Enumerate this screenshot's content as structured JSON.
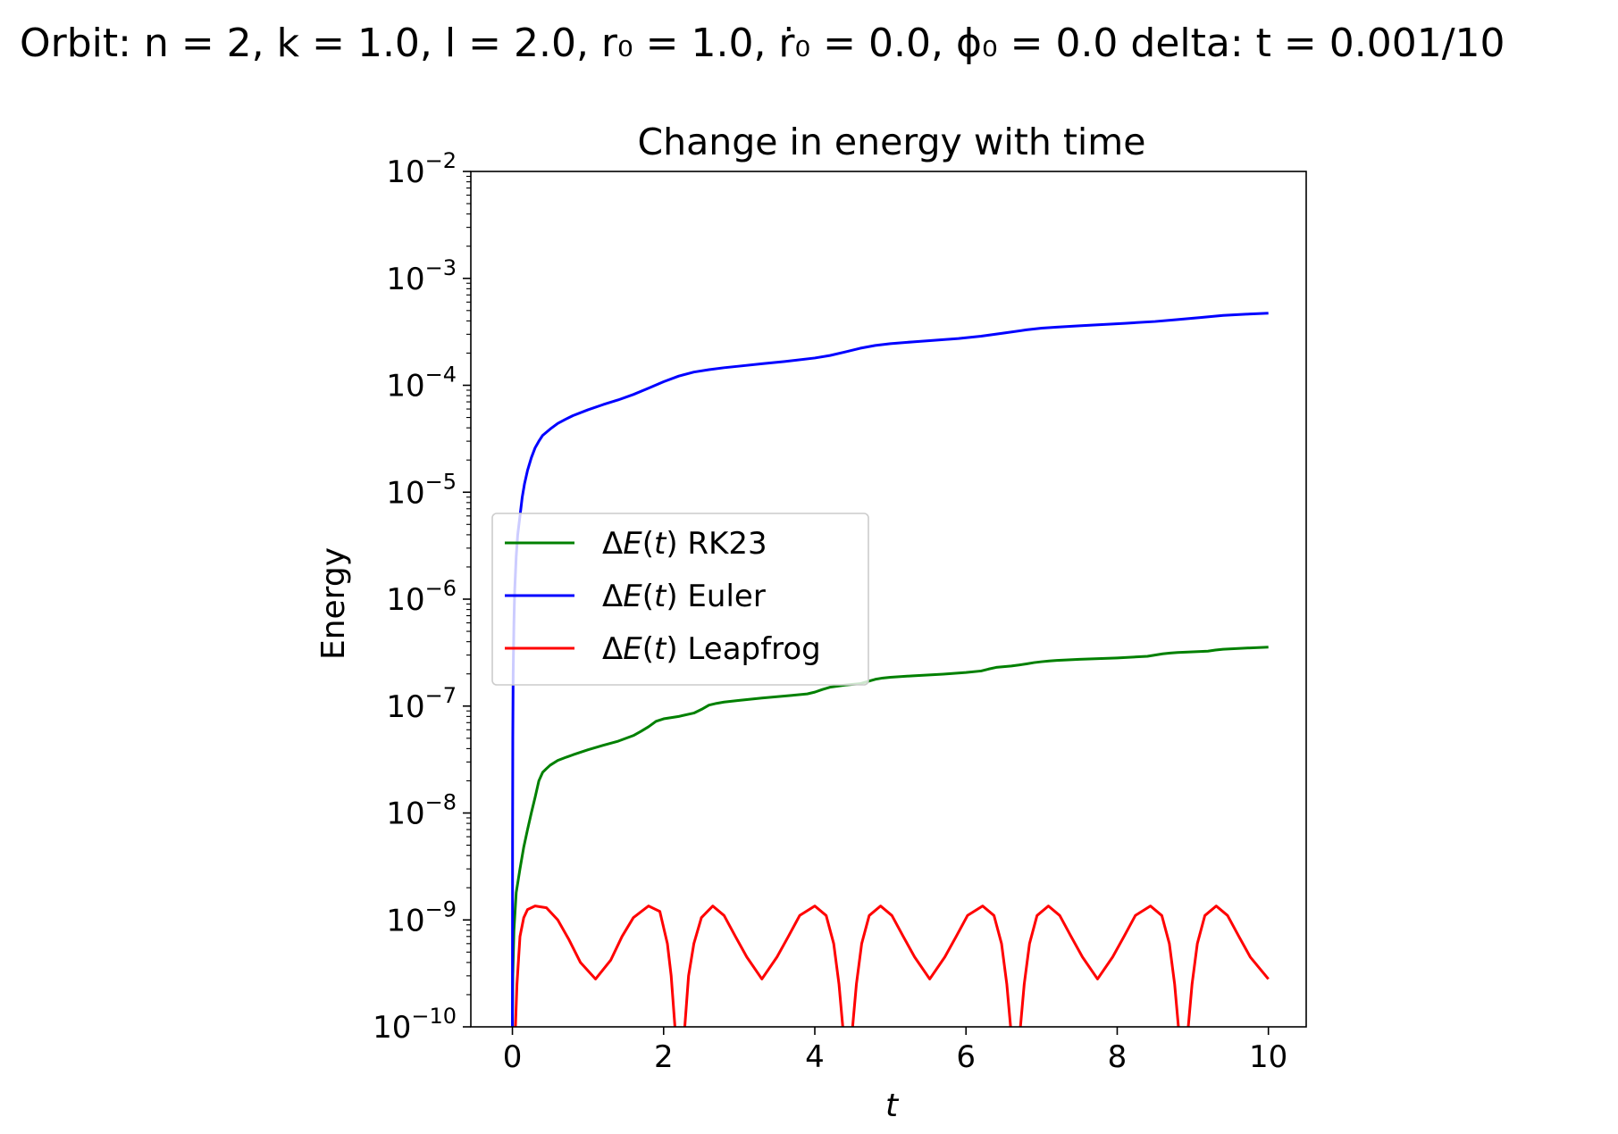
{
  "figure": {
    "suptitle": "Orbit:   n = 2,  k = 1.0,  l = 2.0,  r₀ = 1.0,  ṙ₀ = 0.0,  ϕ₀ = 0.0 delta: t = 0.001/10"
  },
  "chart_data": {
    "type": "line",
    "title": "Change in energy with time",
    "xlabel": "t",
    "ylabel": "Energy",
    "xlim": [
      -0.55,
      10.5
    ],
    "ylim": [
      1e-10,
      0.01
    ],
    "xscale": "linear",
    "yscale": "log",
    "xticks": [
      0,
      2,
      4,
      6,
      8,
      10
    ],
    "xtick_labels": [
      "0",
      "2",
      "4",
      "6",
      "8",
      "10"
    ],
    "yticks": [
      1e-10,
      1e-09,
      1e-08,
      1e-07,
      1e-06,
      1e-05,
      0.0001,
      0.001,
      0.01
    ],
    "ytick_labels": [
      {
        "base": "10",
        "exp": "−10"
      },
      {
        "base": "10",
        "exp": "−9"
      },
      {
        "base": "10",
        "exp": "−8"
      },
      {
        "base": "10",
        "exp": "−7"
      },
      {
        "base": "10",
        "exp": "−6"
      },
      {
        "base": "10",
        "exp": "−5"
      },
      {
        "base": "10",
        "exp": "−4"
      },
      {
        "base": "10",
        "exp": "−3"
      },
      {
        "base": "10",
        "exp": "−2"
      }
    ],
    "grid": false,
    "legend_position": "center-left",
    "series": [
      {
        "name": "ΔE(t) RK23",
        "label_prefix": "Δ",
        "label_italic": "E",
        "label_paren": "(t)",
        "label_method": "RK23",
        "color": "#008000",
        "x": [
          0.0,
          0.005,
          0.02,
          0.05,
          0.1,
          0.15,
          0.2,
          0.25,
          0.3,
          0.35,
          0.4,
          0.45,
          0.5,
          0.6,
          0.7,
          0.8,
          1.0,
          1.2,
          1.4,
          1.6,
          1.7,
          1.8,
          1.9,
          2.0,
          2.2,
          2.4,
          2.5,
          2.6,
          2.7,
          2.8,
          3.0,
          3.3,
          3.7,
          3.9,
          4.0,
          4.1,
          4.2,
          4.4,
          4.6,
          4.7,
          4.8,
          4.9,
          5.0,
          5.3,
          5.7,
          6.0,
          6.2,
          6.3,
          6.4,
          6.6,
          6.7,
          6.8,
          6.9,
          7.0,
          7.1,
          7.2,
          7.5,
          8.0,
          8.4,
          8.5,
          8.6,
          8.7,
          8.8,
          9.2,
          9.3,
          9.4,
          9.6,
          10.0
        ],
        "y": [
          1e-10,
          3e-10,
          8e-10,
          1.8e-09,
          3e-09,
          4.8e-09,
          7e-09,
          1e-08,
          1.4e-08,
          2e-08,
          2.4e-08,
          2.6e-08,
          2.8e-08,
          3.1e-08,
          3.3e-08,
          3.5e-08,
          3.9e-08,
          4.3e-08,
          4.7e-08,
          5.3e-08,
          5.8e-08,
          6.4e-08,
          7.2e-08,
          7.6e-08,
          8e-08,
          8.6e-08,
          9.3e-08,
          1.02e-07,
          1.06e-07,
          1.09e-07,
          1.13e-07,
          1.19e-07,
          1.26e-07,
          1.3e-07,
          1.35e-07,
          1.43e-07,
          1.5e-07,
          1.57e-07,
          1.62e-07,
          1.7e-07,
          1.78e-07,
          1.83e-07,
          1.86e-07,
          1.92e-07,
          1.99e-07,
          2.06e-07,
          2.13e-07,
          2.22e-07,
          2.3e-07,
          2.37e-07,
          2.42e-07,
          2.48e-07,
          2.55e-07,
          2.6e-07,
          2.64e-07,
          2.67e-07,
          2.74e-07,
          2.82e-07,
          2.92e-07,
          3e-07,
          3.08e-07,
          3.13e-07,
          3.17e-07,
          3.26e-07,
          3.34e-07,
          3.4e-07,
          3.46e-07,
          3.56e-07
        ]
      },
      {
        "name": "ΔE(t) Euler",
        "label_prefix": "Δ",
        "label_italic": "E",
        "label_paren": "(t)",
        "label_method": "Euler",
        "color": "#0000ff",
        "x": [
          0.0,
          0.002,
          0.005,
          0.01,
          0.02,
          0.03,
          0.05,
          0.07,
          0.1,
          0.13,
          0.16,
          0.2,
          0.25,
          0.3,
          0.35,
          0.4,
          0.5,
          0.6,
          0.7,
          0.8,
          1.0,
          1.2,
          1.4,
          1.6,
          1.8,
          2.0,
          2.2,
          2.4,
          2.6,
          2.8,
          3.0,
          3.3,
          3.6,
          4.0,
          4.2,
          4.4,
          4.6,
          4.8,
          5.0,
          5.3,
          5.6,
          5.9,
          6.2,
          6.5,
          6.8,
          7.0,
          7.2,
          7.5,
          7.8,
          8.1,
          8.5,
          8.8,
          9.1,
          9.4,
          9.7,
          10.0
        ],
        "y": [
          1e-10,
          5e-09,
          5e-08,
          2e-07,
          6e-07,
          1.2e-06,
          2.5e-06,
          4e-06,
          6e-06,
          9e-06,
          1.2e-05,
          1.6e-05,
          2.1e-05,
          2.6e-05,
          3e-05,
          3.4e-05,
          3.9e-05,
          4.4e-05,
          4.8e-05,
          5.2e-05,
          5.9e-05,
          6.6e-05,
          7.3e-05,
          8.2e-05,
          9.4e-05,
          0.000108,
          0.000122,
          0.000133,
          0.00014,
          0.000146,
          0.000151,
          0.000159,
          0.000167,
          0.00018,
          0.00019,
          0.000205,
          0.000222,
          0.000236,
          0.000245,
          0.000255,
          0.000264,
          0.000274,
          0.000288,
          0.000308,
          0.00033,
          0.000342,
          0.00035,
          0.00036,
          0.00037,
          0.00038,
          0.000395,
          0.000412,
          0.00043,
          0.00045,
          0.000462,
          0.000472
        ]
      },
      {
        "name": "ΔE(t) Leapfrog",
        "label_prefix": "Δ",
        "label_italic": "E",
        "label_paren": "(t)",
        "label_method": "Leapfrog",
        "color": "#ff0000",
        "x": [
          0.04,
          0.06,
          0.1,
          0.15,
          0.2,
          0.3,
          0.45,
          0.6,
          0.75,
          0.9,
          1.1,
          1.3,
          1.45,
          1.6,
          1.8,
          1.95,
          2.05,
          2.1,
          2.15,
          null,
          2.28,
          2.33,
          2.4,
          2.5,
          2.65,
          2.8,
          2.95,
          3.1,
          3.3,
          3.5,
          3.65,
          3.8,
          4.0,
          4.15,
          4.25,
          4.32,
          4.37,
          null,
          4.5,
          4.55,
          4.62,
          4.72,
          4.87,
          5.02,
          5.17,
          5.32,
          5.52,
          5.72,
          5.87,
          6.02,
          6.22,
          6.37,
          6.47,
          6.54,
          6.59,
          null,
          6.72,
          6.77,
          6.84,
          6.94,
          7.09,
          7.24,
          7.39,
          7.54,
          7.74,
          7.94,
          8.09,
          8.24,
          8.44,
          8.59,
          8.69,
          8.76,
          8.81,
          null,
          8.94,
          8.99,
          9.06,
          9.16,
          9.31,
          9.46,
          9.61,
          9.76,
          10.0
        ],
        "y": [
          1e-10,
          2.5e-10,
          7e-10,
          1.05e-09,
          1.25e-09,
          1.35e-09,
          1.3e-09,
          1e-09,
          6.5e-10,
          4e-10,
          2.8e-10,
          4.2e-10,
          7e-10,
          1.05e-09,
          1.35e-09,
          1.2e-09,
          6e-10,
          3e-10,
          1e-10,
          null,
          1e-10,
          3e-10,
          6e-10,
          1.05e-09,
          1.35e-09,
          1.1e-09,
          7e-10,
          4.5e-10,
          2.8e-10,
          4.5e-10,
          7e-10,
          1.1e-09,
          1.35e-09,
          1.1e-09,
          6e-10,
          2.5e-10,
          1e-10,
          null,
          1e-10,
          2.5e-10,
          6e-10,
          1.1e-09,
          1.35e-09,
          1.1e-09,
          7e-10,
          4.5e-10,
          2.8e-10,
          4.5e-10,
          7e-10,
          1.1e-09,
          1.35e-09,
          1.1e-09,
          6e-10,
          2.5e-10,
          1e-10,
          null,
          1e-10,
          2.5e-10,
          6e-10,
          1.1e-09,
          1.35e-09,
          1.1e-09,
          7e-10,
          4.5e-10,
          2.8e-10,
          4.5e-10,
          7e-10,
          1.1e-09,
          1.35e-09,
          1.1e-09,
          6e-10,
          2.5e-10,
          1e-10,
          null,
          1e-10,
          2.5e-10,
          6e-10,
          1.1e-09,
          1.35e-09,
          1.1e-09,
          7e-10,
          4.5e-10,
          2.8e-10
        ]
      }
    ]
  }
}
